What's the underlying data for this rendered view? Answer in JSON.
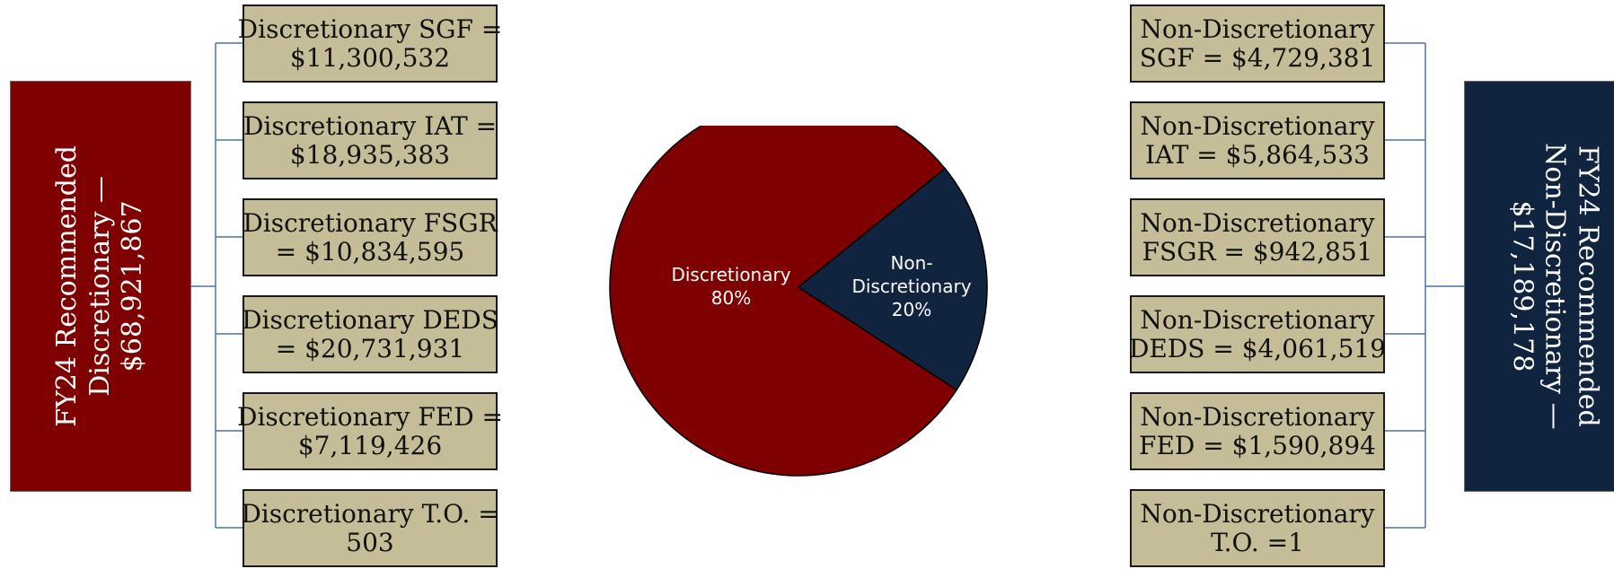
{
  "left_panel": {
    "title_lines": [
      "FY24 Recommended",
      "Discretionary —",
      "$68,921,867"
    ],
    "color": "#7f0000",
    "items": [
      {
        "lines": [
          "Discretionary SGF =",
          "$11,300,532"
        ]
      },
      {
        "lines": [
          "Discretionary IAT =",
          "$18,935,383"
        ]
      },
      {
        "lines": [
          "Discretionary FSGR",
          "= $10,834,595"
        ]
      },
      {
        "lines": [
          "Discretionary DEDS",
          "= $20,731,931"
        ]
      },
      {
        "lines": [
          "Discretionary FED =",
          "$7,119,426"
        ]
      },
      {
        "lines": [
          "Discretionary T.O. =",
          "503"
        ]
      }
    ]
  },
  "right_panel": {
    "title_lines": [
      "FY24 Recommended",
      "Non-Discretionary —",
      "$17,189,178"
    ],
    "color": "#10233f",
    "items": [
      {
        "lines": [
          "Non-Discretionary",
          "SGF = $4,729,381"
        ]
      },
      {
        "lines": [
          "Non-Discretionary",
          "IAT = $5,864,533"
        ]
      },
      {
        "lines": [
          "Non-Discretionary",
          "FSGR = $942,851"
        ]
      },
      {
        "lines": [
          "Non-Discretionary",
          "DEDS = $4,061,519"
        ]
      },
      {
        "lines": [
          "Non-Discretionary",
          "FED = $1,590,894"
        ]
      },
      {
        "lines": [
          "Non-Discretionary",
          "T.O. =1"
        ]
      }
    ]
  },
  "box_fill": "#c4bd97",
  "connector_color": "#4a74a8",
  "chart_data": {
    "type": "pie",
    "slices": [
      {
        "label_lines": [
          "Discretionary",
          "80%"
        ],
        "value": 80,
        "color": "#7f0000"
      },
      {
        "label_lines": [
          "Non-",
          "Discretionary",
          "20%"
        ],
        "value": 20,
        "color": "#10233f"
      }
    ]
  }
}
